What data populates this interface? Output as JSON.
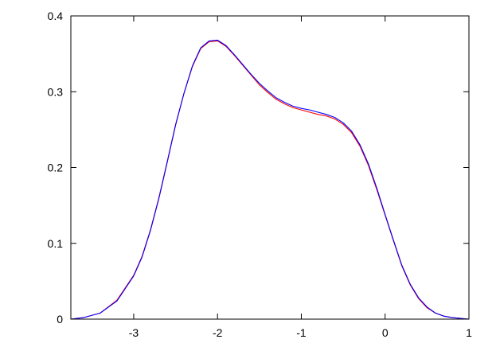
{
  "chart_data": {
    "type": "line",
    "title": "",
    "xlabel": "",
    "ylabel": "",
    "xlim": [
      -3.75,
      1
    ],
    "ylim": [
      0,
      0.4
    ],
    "grid": false,
    "x_ticks": [
      {
        "value": -3,
        "label": "-3"
      },
      {
        "value": -2,
        "label": "-2"
      },
      {
        "value": -1,
        "label": "-1"
      },
      {
        "value": 0,
        "label": "0"
      },
      {
        "value": 1,
        "label": "1"
      }
    ],
    "y_ticks": [
      {
        "value": 0,
        "label": "0"
      },
      {
        "value": 0.1,
        "label": "0.1"
      },
      {
        "value": 0.2,
        "label": "0.2"
      },
      {
        "value": 0.3,
        "label": "0.3"
      },
      {
        "value": 0.4,
        "label": "0.4"
      }
    ],
    "series": [
      {
        "color": "#ff0000",
        "x": [
          -3.75,
          -3.6,
          -3.4,
          -3.2,
          -3.0,
          -2.9,
          -2.8,
          -2.7,
          -2.6,
          -2.5,
          -2.4,
          -2.3,
          -2.2,
          -2.1,
          -2.0,
          -1.9,
          -1.8,
          -1.7,
          -1.6,
          -1.5,
          -1.4,
          -1.3,
          -1.2,
          -1.1,
          -1.0,
          -0.9,
          -0.8,
          -0.7,
          -0.6,
          -0.5,
          -0.4,
          -0.3,
          -0.2,
          -0.1,
          0.0,
          0.1,
          0.2,
          0.3,
          0.4,
          0.5,
          0.6,
          0.7,
          0.8,
          0.9,
          1.0
        ],
        "y": [
          0.0,
          0.002,
          0.008,
          0.025,
          0.058,
          0.083,
          0.118,
          0.16,
          0.208,
          0.257,
          0.298,
          0.333,
          0.357,
          0.366,
          0.367,
          0.36,
          0.348,
          0.335,
          0.322,
          0.309,
          0.299,
          0.29,
          0.284,
          0.279,
          0.276,
          0.273,
          0.27,
          0.268,
          0.264,
          0.257,
          0.246,
          0.228,
          0.203,
          0.171,
          0.137,
          0.103,
          0.07,
          0.045,
          0.027,
          0.015,
          0.008,
          0.004,
          0.002,
          0.001,
          0.0
        ]
      },
      {
        "color": "#0000ff",
        "x": [
          -3.75,
          -3.6,
          -3.4,
          -3.2,
          -3.0,
          -2.9,
          -2.8,
          -2.7,
          -2.6,
          -2.5,
          -2.4,
          -2.3,
          -2.2,
          -2.1,
          -2.0,
          -1.9,
          -1.8,
          -1.7,
          -1.6,
          -1.5,
          -1.4,
          -1.3,
          -1.2,
          -1.1,
          -1.0,
          -0.9,
          -0.8,
          -0.7,
          -0.6,
          -0.5,
          -0.4,
          -0.3,
          -0.2,
          -0.1,
          0.0,
          0.1,
          0.2,
          0.3,
          0.4,
          0.5,
          0.6,
          0.7,
          0.8,
          0.9,
          1.0
        ],
        "y": [
          0.0,
          0.002,
          0.008,
          0.024,
          0.057,
          0.082,
          0.117,
          0.159,
          0.207,
          0.256,
          0.298,
          0.334,
          0.358,
          0.367,
          0.368,
          0.361,
          0.349,
          0.336,
          0.323,
          0.311,
          0.301,
          0.292,
          0.286,
          0.281,
          0.278,
          0.276,
          0.273,
          0.27,
          0.266,
          0.259,
          0.248,
          0.23,
          0.205,
          0.173,
          0.138,
          0.104,
          0.071,
          0.046,
          0.028,
          0.016,
          0.008,
          0.004,
          0.002,
          0.001,
          0.0
        ]
      }
    ]
  }
}
